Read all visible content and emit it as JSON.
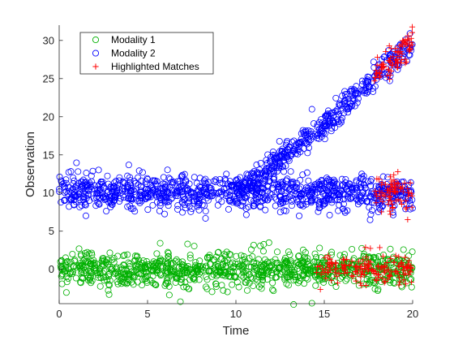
{
  "chart_data": {
    "type": "scatter",
    "title": "",
    "xlabel": "Time",
    "ylabel": "Observation",
    "xlim": [
      0,
      20
    ],
    "ylim": [
      -4.5,
      32
    ],
    "xticks": [
      0,
      5,
      10,
      15,
      20
    ],
    "yticks": [
      0,
      5,
      10,
      15,
      20,
      25,
      30
    ],
    "grid": false,
    "legend": "top-left",
    "series": [
      {
        "name": "Modality 1",
        "marker": "circle",
        "color": "#00b000",
        "description": "noisy baseline around 0 over the full time range",
        "x_range": [
          0,
          20
        ],
        "trend": [
          [
            0,
            0
          ],
          [
            20,
            0
          ]
        ],
        "noise_sd": 1.1,
        "count": 1000
      },
      {
        "name": "Modality 2",
        "marker": "circle",
        "color": "#0000ff",
        "description": "branch constant near 10 throughout; second branch splitting at t≈10 and rising to about 30 at t=20",
        "branches": [
          {
            "x_range": [
              0,
              20
            ],
            "trend": [
              [
                0,
                10.2
              ],
              [
                20,
                10
              ]
            ],
            "noise_sd": 1.1,
            "count": 1000
          },
          {
            "x_range": [
              10,
              20
            ],
            "trend": [
              [
                10,
                10
              ],
              [
                12,
                13.5
              ],
              [
                14,
                17
              ],
              [
                16,
                21
              ],
              [
                18,
                25.5
              ],
              [
                20,
                29.5
              ]
            ],
            "noise_sd": 0.9,
            "count": 420
          }
        ]
      },
      {
        "name": "Highlighted Matches",
        "marker": "plus",
        "color": "#ff0000",
        "description": "matches on the Modality 1 baseline for t≈14.5–20 and on both Modality 2 branches for t≈17.8–20",
        "groups": [
          {
            "x_range": [
              14.5,
              20
            ],
            "trend": [
              [
                14.5,
                0
              ],
              [
                20,
                0
              ]
            ],
            "noise_sd": 1.0,
            "count": 160
          },
          {
            "x_range": [
              17.8,
              20
            ],
            "trend": [
              [
                17.8,
                10
              ],
              [
                20,
                10
              ]
            ],
            "noise_sd": 1.2,
            "count": 75
          },
          {
            "x_range": [
              17.8,
              20
            ],
            "trend": [
              [
                17.8,
                25.5
              ],
              [
                20,
                29.5
              ]
            ],
            "noise_sd": 0.9,
            "count": 80
          }
        ]
      }
    ]
  }
}
